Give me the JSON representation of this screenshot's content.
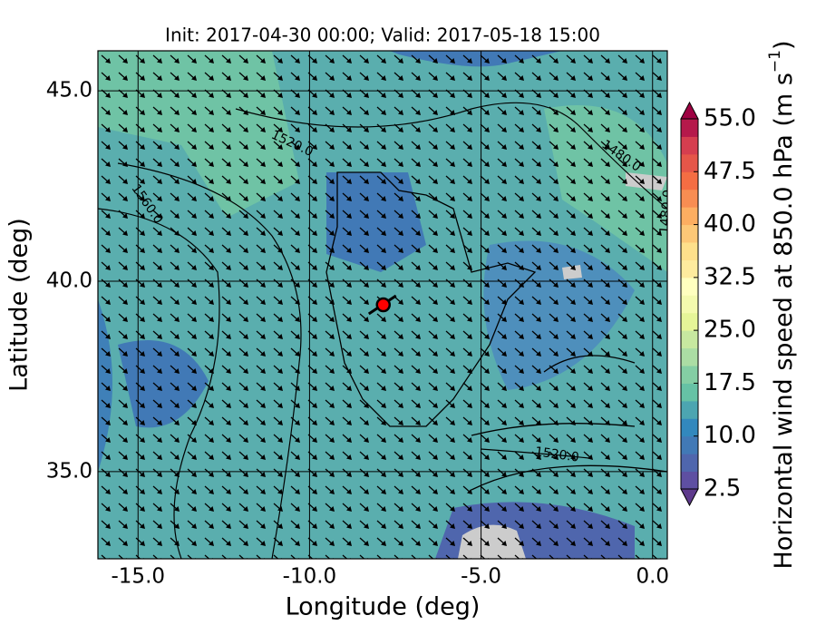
{
  "chart_data": {
    "type": "map",
    "title": "Init: 2017-04-30 00:00; Valid: 2017-05-18 15:00",
    "x_label": "Longitude (deg)",
    "y_label": "Latitude (deg)",
    "xlim": [
      -16.17,
      0.43
    ],
    "ylim": [
      32.71,
      46.05
    ],
    "xticks": [
      {
        "value": -15,
        "label": "-15.0"
      },
      {
        "value": -10,
        "label": "-10.0"
      },
      {
        "value": -5,
        "label": "-5.0"
      },
      {
        "value": 0,
        "label": "0.0"
      }
    ],
    "yticks": [
      {
        "value": 35,
        "label": "35.0"
      },
      {
        "value": 40,
        "label": "40.0"
      },
      {
        "value": 45,
        "label": "45.0"
      }
    ],
    "grid": true,
    "contour_labels": [
      "1520.0",
      "1560.0",
      "1480.0",
      "1480.0",
      "1520.0"
    ],
    "marker": {
      "lon": -7.85,
      "lat": 39.38,
      "color": "#ff0000"
    },
    "colorbar": {
      "label": [
        "Horizontal wind speed at 850.0 hPa (m s",
        "−1",
        ")"
      ],
      "lim": [
        2.5,
        55
      ],
      "ticks": [
        {
          "value": 2.5,
          "label": "2.5"
        },
        {
          "value": 10,
          "label": "10.0"
        },
        {
          "value": 17.5,
          "label": "17.5"
        },
        {
          "value": 25,
          "label": "25.0"
        },
        {
          "value": 32.5,
          "label": "32.5"
        },
        {
          "value": 40,
          "label": "40.0"
        },
        {
          "value": 47.5,
          "label": "47.5"
        },
        {
          "value": 55,
          "label": "55.0"
        }
      ],
      "colors": [
        "#5e4fa2",
        "#4f66ad",
        "#4179b6",
        "#3288bd",
        "#4ca5b1",
        "#66c2a5",
        "#84cea4",
        "#abdda4",
        "#c7e8a0",
        "#e6f598",
        "#f4faae",
        "#ffffbf",
        "#feeb9e",
        "#fee08b",
        "#fdc877",
        "#fdae61",
        "#f88d52",
        "#f46d43",
        "#e55649",
        "#d53e4f",
        "#b5194b"
      ],
      "over_color": "#9e0142",
      "under_color": "#5e3a8c"
    }
  }
}
